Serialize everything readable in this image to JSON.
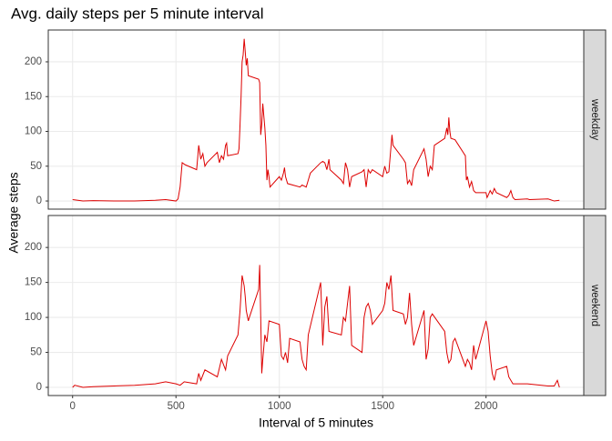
{
  "chart_data": {
    "type": "line",
    "title": "Avg. daily steps per 5 minute interval",
    "x_label": "Interval of 5 minutes",
    "y_label": "Average steps",
    "xlim": [
      -117.75,
      2472.75
    ],
    "xticks": [
      0,
      500,
      1000,
      1500,
      2000
    ],
    "ylim": [
      -11.7,
      245.7
    ],
    "yticks": [
      0,
      50,
      100,
      150,
      200
    ],
    "grid": true,
    "color": "#dd0000",
    "facets": [
      {
        "name": "weekday",
        "x": [
          0,
          50,
          100,
          200,
          300,
          400,
          450,
          500,
          510,
          520,
          530,
          545,
          600,
          605,
          610,
          620,
          630,
          640,
          650,
          700,
          710,
          720,
          730,
          740,
          745,
          750,
          800,
          805,
          810,
          815,
          820,
          825,
          830,
          835,
          840,
          845,
          850,
          900,
          905,
          910,
          915,
          920,
          930,
          935,
          940,
          945,
          950,
          955,
          1000,
          1010,
          1020,
          1025,
          1030,
          1040,
          1100,
          1110,
          1130,
          1140,
          1150,
          1200,
          1210,
          1220,
          1230,
          1240,
          1245,
          1300,
          1310,
          1320,
          1330,
          1340,
          1350,
          1400,
          1410,
          1420,
          1430,
          1440,
          1450,
          1500,
          1510,
          1520,
          1530,
          1545,
          1550,
          1600,
          1610,
          1620,
          1630,
          1640,
          1650,
          1700,
          1710,
          1720,
          1730,
          1740,
          1750,
          1800,
          1810,
          1815,
          1820,
          1825,
          1830,
          1850,
          1900,
          1905,
          1910,
          1920,
          1930,
          1940,
          1950,
          2000,
          2005,
          2010,
          2020,
          2030,
          2040,
          2050,
          2100,
          2110,
          2120,
          2130,
          2140,
          2200,
          2210,
          2300,
          2330,
          2355
        ],
        "values": [
          2,
          0,
          0.5,
          0,
          0,
          1,
          2,
          0,
          3,
          20,
          55,
          52,
          45,
          62,
          80,
          60,
          68,
          50,
          55,
          70,
          55,
          65,
          60,
          80,
          83,
          65,
          68,
          75,
          110,
          150,
          200,
          210,
          233,
          215,
          195,
          205,
          180,
          175,
          170,
          95,
          110,
          140,
          105,
          80,
          30,
          45,
          35,
          20,
          35,
          30,
          40,
          48,
          35,
          25,
          20,
          23,
          20,
          30,
          40,
          55,
          57,
          55,
          45,
          60,
          45,
          30,
          25,
          55,
          45,
          20,
          35,
          42,
          45,
          20,
          45,
          40,
          45,
          35,
          50,
          40,
          42,
          95,
          80,
          60,
          55,
          25,
          30,
          22,
          45,
          75,
          60,
          35,
          50,
          45,
          80,
          90,
          105,
          95,
          120,
          100,
          90,
          88,
          65,
          30,
          35,
          20,
          28,
          15,
          12,
          12,
          5,
          8,
          15,
          10,
          18,
          12,
          5,
          8,
          15,
          5,
          2,
          3,
          2,
          3,
          0,
          1
        ]
      },
      {
        "name": "weekend",
        "x": [
          0,
          10,
          50,
          100,
          200,
          300,
          400,
          450,
          500,
          520,
          540,
          600,
          610,
          620,
          640,
          700,
          720,
          740,
          750,
          800,
          810,
          820,
          830,
          835,
          840,
          850,
          855,
          900,
          905,
          910,
          915,
          920,
          930,
          940,
          950,
          1000,
          1010,
          1020,
          1030,
          1040,
          1050,
          1100,
          1110,
          1120,
          1130,
          1140,
          1200,
          1205,
          1210,
          1220,
          1230,
          1240,
          1300,
          1310,
          1320,
          1330,
          1340,
          1350,
          1400,
          1410,
          1420,
          1430,
          1440,
          1450,
          1500,
          1510,
          1520,
          1530,
          1540,
          1550,
          1600,
          1610,
          1620,
          1630,
          1640,
          1650,
          1700,
          1710,
          1720,
          1730,
          1740,
          1800,
          1810,
          1820,
          1830,
          1840,
          1850,
          1900,
          1910,
          1920,
          1930,
          1940,
          1950,
          2000,
          2010,
          2020,
          2030,
          2040,
          2050,
          2100,
          2110,
          2130,
          2200,
          2300,
          2330,
          2345,
          2355
        ],
        "values": [
          0,
          3,
          0,
          1,
          2,
          3,
          5,
          8,
          5,
          3,
          8,
          5,
          20,
          10,
          25,
          15,
          40,
          25,
          45,
          75,
          110,
          160,
          145,
          130,
          110,
          95,
          100,
          140,
          175,
          100,
          20,
          40,
          75,
          65,
          95,
          90,
          45,
          40,
          50,
          35,
          70,
          65,
          40,
          30,
          25,
          75,
          150,
          110,
          60,
          115,
          130,
          80,
          75,
          100,
          95,
          120,
          145,
          60,
          50,
          100,
          115,
          120,
          110,
          90,
          110,
          120,
          150,
          140,
          160,
          110,
          105,
          90,
          100,
          135,
          90,
          60,
          110,
          40,
          55,
          100,
          105,
          80,
          50,
          35,
          40,
          65,
          70,
          30,
          40,
          35,
          25,
          60,
          40,
          95,
          80,
          45,
          20,
          10,
          25,
          30,
          15,
          5,
          5,
          2,
          2,
          10,
          0
        ]
      }
    ]
  }
}
